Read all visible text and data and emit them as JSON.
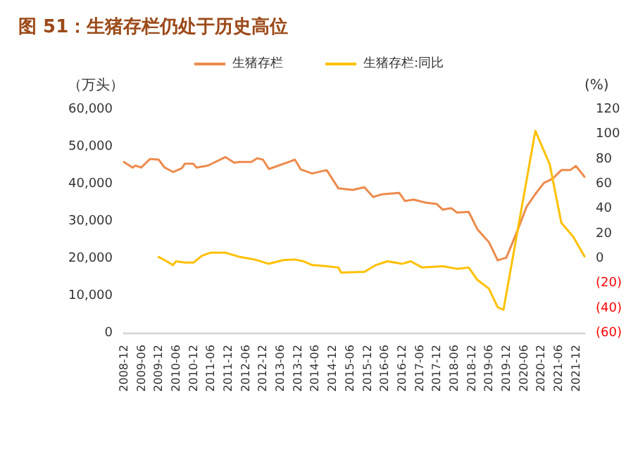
{
  "chart_data": {
    "type": "line",
    "title": "图 51：生猪存栏仍处于历史高位",
    "ylabel": "（万头）",
    "y2label": "(%)",
    "xlim": [
      "2008-12",
      "2022-03"
    ],
    "xticks": [
      "2008-12",
      "2009-06",
      "2009-12",
      "2010-06",
      "2010-12",
      "2011-06",
      "2011-12",
      "2012-06",
      "2012-12",
      "2013-06",
      "2013-12",
      "2014-06",
      "2014-12",
      "2015-06",
      "2015-12",
      "2016-06",
      "2016-12",
      "2017-06",
      "2017-12",
      "2018-06",
      "2018-12",
      "2019-06",
      "2019-12",
      "2020-06",
      "2020-12",
      "2021-06",
      "2021-12"
    ],
    "ylim": [
      0,
      60000
    ],
    "yticks": [
      0,
      {
        "value": 10000,
        "label": "10,000"
      },
      {
        "value": 20000,
        "label": "20,000"
      },
      {
        "value": 30000,
        "label": "30,000"
      },
      {
        "value": 40000,
        "label": "40,000"
      },
      {
        "value": 50000,
        "label": "50,000"
      },
      {
        "value": 60000,
        "label": "60,000"
      }
    ],
    "y2lim": [
      -60,
      120
    ],
    "y2ticks": [
      {
        "value": -60,
        "label": "(60)"
      },
      {
        "value": -40,
        "label": "(40)"
      },
      {
        "value": -20,
        "label": "(20)"
      },
      0,
      20,
      40,
      60,
      80,
      100,
      120
    ],
    "grid": false,
    "legend": "top",
    "marker": "none",
    "line_style": "solid",
    "series": [
      {
        "name": "生猪存栏",
        "color": "#ed8b4c",
        "x": [
          "2008-12",
          "2009-03",
          "2009-04",
          "2009-06",
          "2009-09",
          "2009-12",
          "2010-02",
          "2010-05",
          "2010-08",
          "2010-09",
          "2010-12",
          "2011-01",
          "2011-05",
          "2011-11",
          "2012-02",
          "2012-04",
          "2012-08",
          "2012-10",
          "2012-12",
          "2013-02",
          "2013-05",
          "2013-09",
          "2013-11",
          "2014-01",
          "2014-05",
          "2014-10",
          "2015-02",
          "2015-07",
          "2015-11",
          "2016-02",
          "2016-05",
          "2016-11",
          "2017-01",
          "2017-04",
          "2017-08",
          "2017-12",
          "2018-02",
          "2018-05",
          "2018-07",
          "2018-11",
          "2019-02",
          "2019-06",
          "2019-09",
          "2019-12",
          "2020-04",
          "2020-07",
          "2020-10",
          "2021-01",
          "2021-04",
          "2021-07",
          "2021-10",
          "2021-12",
          "2022-03"
        ],
        "values": [
          46000,
          44500,
          45000,
          44500,
          46800,
          46600,
          44500,
          43300,
          44300,
          45500,
          45500,
          44500,
          45000,
          47300,
          45800,
          46000,
          46000,
          47000,
          46600,
          44100,
          44900,
          46000,
          46600,
          44000,
          42900,
          43800,
          38900,
          38500,
          39200,
          36600,
          37300,
          37700,
          35500,
          35900,
          35100,
          34700,
          33200,
          33600,
          32400,
          32600,
          27900,
          24500,
          19600,
          20300,
          27900,
          34000,
          37400,
          40400,
          41500,
          43800,
          43800,
          44900,
          42000
        ]
      },
      {
        "name": "生猪存栏:同比",
        "color": "#ffc000",
        "axis": "y2",
        "x": [
          "2009-12",
          "2010-02",
          "2010-05",
          "2010-06",
          "2010-09",
          "2010-12",
          "2011-03",
          "2011-06",
          "2011-08",
          "2011-11",
          "2012-04",
          "2012-09",
          "2013-02",
          "2013-07",
          "2013-11",
          "2014-02",
          "2014-05",
          "2014-10",
          "2015-02",
          "2015-03",
          "2015-11",
          "2016-03",
          "2016-07",
          "2016-12",
          "2017-03",
          "2017-07",
          "2018-02",
          "2018-07",
          "2018-11",
          "2019-02",
          "2019-06",
          "2019-09",
          "2019-11",
          "2020-10",
          "2021-03",
          "2021-07",
          "2021-11",
          "2022-03"
        ],
        "values": [
          1.5,
          -1,
          -5,
          -2,
          -3,
          -3,
          2.5,
          5,
          5,
          5,
          1.5,
          -0.5,
          -4,
          -1,
          -0.5,
          -2,
          -5,
          -6,
          -7,
          -11,
          -10.5,
          -5,
          -2,
          -4,
          -2,
          -7,
          -6,
          -8,
          -7,
          -17,
          -24,
          -39,
          -41,
          103,
          76,
          29,
          18,
          2
        ]
      }
    ]
  }
}
